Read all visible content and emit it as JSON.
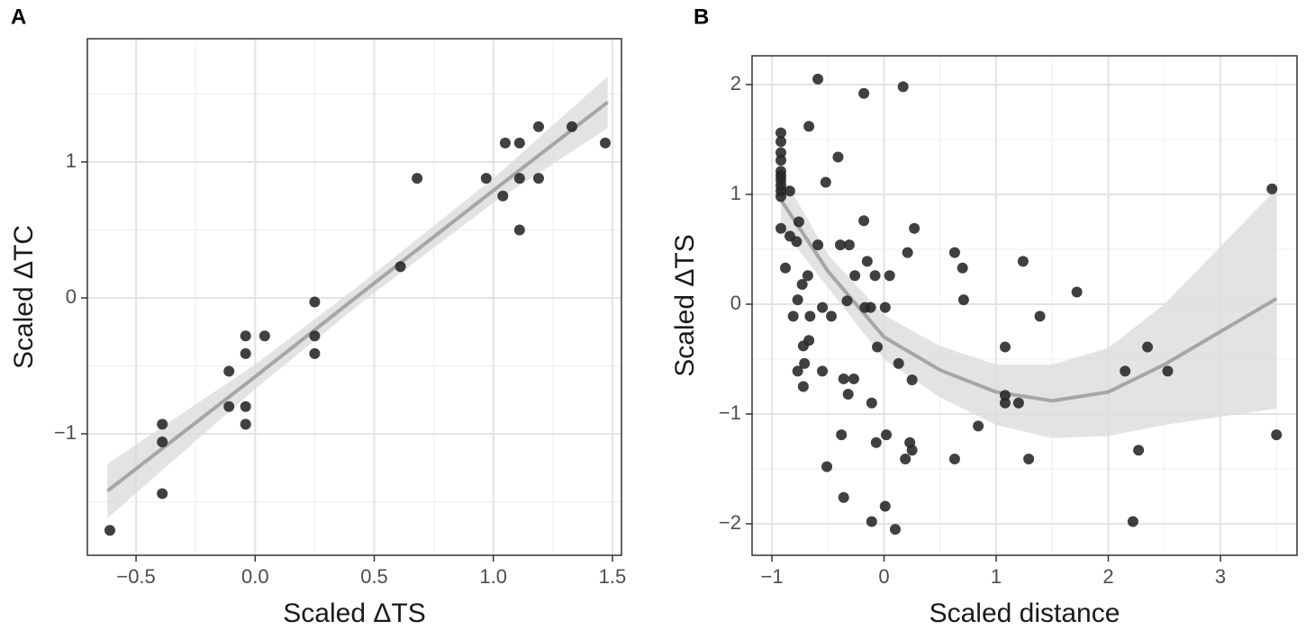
{
  "chart_data": [
    {
      "type": "scatter",
      "panel_label": "A",
      "x_label": "Scaled ΔTS",
      "y_label": "Scaled ΔTC",
      "color": "#262626",
      "grid": true,
      "xlim": [
        -0.7045,
        1.538
      ],
      "ylim": [
        -1.894,
        1.907
      ],
      "xticks": [
        {
          "value": -0.5,
          "label": "−0.5"
        },
        {
          "value": 0,
          "label": "0.0"
        },
        {
          "value": 0.5,
          "label": "0.5"
        },
        {
          "value": 1,
          "label": "1.0"
        },
        {
          "value": 1.5,
          "label": "1.5"
        }
      ],
      "yticks": [
        {
          "value": -1,
          "label": "−1"
        },
        0,
        1
      ],
      "x": [
        -0.61,
        -0.39,
        -0.39,
        -0.39,
        -0.11,
        -0.11,
        -0.04,
        -0.04,
        -0.04,
        -0.04,
        0.04,
        0.25,
        0.25,
        0.25,
        0.61,
        0.68,
        0.97,
        1.04,
        1.05,
        1.11,
        1.11,
        1.11,
        1.19,
        1.19,
        1.33,
        1.47
      ],
      "y": [
        -1.71,
        -0.93,
        -1.06,
        -1.44,
        -0.54,
        -0.8,
        -0.28,
        -0.41,
        -0.8,
        -0.93,
        -0.28,
        -0.03,
        -0.28,
        -0.41,
        0.23,
        0.88,
        0.88,
        0.75,
        1.14,
        1.14,
        0.88,
        0.5,
        1.26,
        0.88,
        1.26,
        1.14
      ],
      "trend": {
        "color": "#a6a6a6",
        "band_color": "#dcdcdc",
        "x": [
          -0.62,
          0,
          0.45,
          1,
          1.48
        ],
        "y": [
          -1.42,
          -0.58,
          0.04,
          0.79,
          1.44
        ],
        "lower": [
          -1.62,
          -0.67,
          -0.03,
          0.7,
          1.25
        ],
        "upper": [
          -1.22,
          -0.49,
          0.11,
          0.88,
          1.63
        ]
      }
    },
    {
      "type": "scatter",
      "panel_label": "B",
      "x_label": "Scaled distance",
      "y_label": "Scaled ΔTS",
      "color": "#262626",
      "grid": true,
      "xlim": [
        -1.177,
        3.683
      ],
      "ylim": [
        -2.287,
        2.262
      ],
      "xticks": [
        {
          "value": -1,
          "label": "−1"
        },
        0,
        1,
        2,
        3
      ],
      "yticks": [
        {
          "value": -2,
          "label": "−2"
        },
        {
          "value": -1,
          "label": "−1"
        },
        0,
        1,
        2
      ],
      "x": [
        -0.92,
        -0.92,
        -0.92,
        -0.92,
        -0.92,
        -0.92,
        -0.92,
        -0.92,
        -0.92,
        -0.92,
        -0.92,
        -0.84,
        -0.88,
        -0.84,
        -0.78,
        -0.76,
        -0.81,
        -0.77,
        -0.77,
        -0.73,
        -0.72,
        -0.71,
        -0.72,
        -0.68,
        -0.67,
        -0.67,
        -0.66,
        -0.59,
        -0.59,
        -0.55,
        -0.55,
        -0.52,
        -0.51,
        -0.47,
        -0.41,
        -0.39,
        -0.38,
        -0.36,
        -0.36,
        -0.33,
        -0.32,
        -0.31,
        -0.27,
        -0.26,
        -0.18,
        -0.18,
        -0.17,
        -0.15,
        -0.12,
        -0.11,
        -0.11,
        -0.08,
        -0.07,
        -0.06,
        0.01,
        0.01,
        0.02,
        0.05,
        0.1,
        0.13,
        0.17,
        0.19,
        0.21,
        0.23,
        0.25,
        0.25,
        0.27,
        0.63,
        0.63,
        0.7,
        0.71,
        0.84,
        1.08,
        1.08,
        1.08,
        1.2,
        1.24,
        1.29,
        1.39,
        1.72,
        2.15,
        2.22,
        2.27,
        2.35,
        2.53,
        3.46,
        3.5
      ],
      "y": [
        1.56,
        1.48,
        1.38,
        1.31,
        1.21,
        1.17,
        1.13,
        1.08,
        1.03,
        0.98,
        0.69,
        1.03,
        0.33,
        0.62,
        0.57,
        0.75,
        -0.11,
        0.04,
        -0.61,
        0.18,
        -0.38,
        -0.54,
        -0.75,
        0.26,
        1.62,
        -0.33,
        -0.11,
        2.05,
        0.54,
        -0.03,
        -0.61,
        1.11,
        -1.48,
        -0.11,
        1.34,
        0.54,
        -1.19,
        -0.68,
        -1.76,
        0.03,
        -0.82,
        0.54,
        -0.68,
        0.26,
        0.76,
        1.92,
        -0.03,
        0.39,
        -0.03,
        -0.9,
        -1.98,
        0.26,
        -1.26,
        -0.39,
        -0.03,
        -1.84,
        -1.19,
        0.26,
        -2.05,
        -0.54,
        1.98,
        -1.41,
        0.47,
        -1.26,
        -1.33,
        -0.69,
        0.69,
        0.47,
        -1.41,
        0.33,
        0.04,
        -1.11,
        -0.39,
        -0.83,
        -0.9,
        -0.9,
        0.39,
        -1.41,
        -0.11,
        0.11,
        -0.61,
        -1.98,
        -1.33,
        -0.39,
        -0.61,
        1.05,
        -1.19
      ],
      "trend": {
        "color": "#a6a6a6",
        "band_color": "#dcdcdc",
        "x": [
          -0.92,
          -0.5,
          0,
          0.5,
          1,
          1.5,
          2,
          2.5,
          3.5
        ],
        "y": [
          0.95,
          0.3,
          -0.3,
          -0.6,
          -0.8,
          -0.88,
          -0.8,
          -0.55,
          0.05
        ],
        "lower": [
          0.7,
          0.15,
          -0.5,
          -0.85,
          -1.1,
          -1.22,
          -1.2,
          -1.1,
          -0.95
        ],
        "upper": [
          1.2,
          0.45,
          -0.1,
          -0.38,
          -0.55,
          -0.55,
          -0.4,
          0,
          1.05
        ]
      }
    }
  ]
}
